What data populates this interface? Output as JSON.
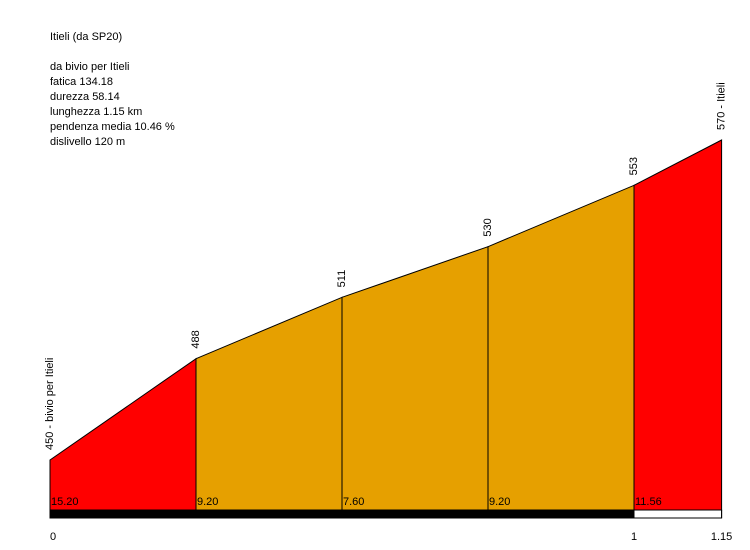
{
  "chart_data": {
    "type": "area",
    "title": "Itieli (da SP20)",
    "info_lines": [
      "da bivio per Itieli",
      "fatica 134.18",
      "durezza 58.14",
      "lunghezza 1.15 km",
      "pendenza media 10.46 %",
      "dislivello 120 m"
    ],
    "x": [
      0,
      0.25,
      0.5,
      0.75,
      1,
      1.15
    ],
    "values": [
      450,
      488,
      511,
      530,
      553,
      570
    ],
    "value_labels": [
      "450 - bivio per Itieli",
      "488",
      "511",
      "530",
      "553",
      "570 - Itieli"
    ],
    "gradients": [
      15.2,
      9.2,
      7.6,
      9.2,
      11.56
    ],
    "gradient_labels": [
      "15.20",
      "9.20",
      "7.60",
      "9.20",
      "11.56"
    ],
    "segment_colors": [
      "#ff0000",
      "#e6a000",
      "#e6a000",
      "#e6a000",
      "#ff0000"
    ],
    "xlim": [
      0,
      1.15
    ],
    "xticks": [
      0,
      1,
      1.15
    ],
    "ylim": [
      431.25,
      622.5
    ]
  }
}
